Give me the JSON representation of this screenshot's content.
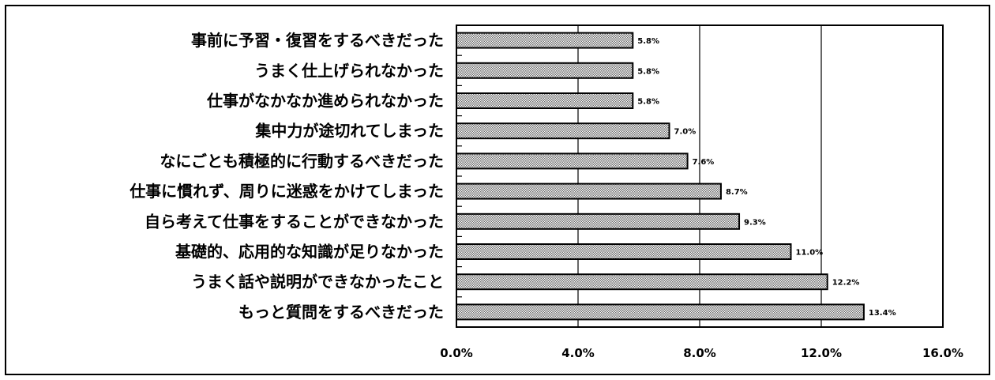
{
  "chart_data": {
    "type": "bar",
    "orientation": "horizontal",
    "categories": [
      "事前に予習・復習をするべきだった",
      "うまく仕上げられなかった",
      "仕事がなかなか進められなかった",
      "集中力が途切れてしまった",
      "なにごとも積極的に行動するべきだった",
      "仕事に慣れず、周りに迷惑をかけてしまった",
      "自ら考えて仕事をすることができなかった",
      "基礎的、応用的な知識が足りなかった",
      "うまく話や説明ができなかったこと",
      "もっと質問をするべきだった"
    ],
    "values": [
      5.8,
      5.8,
      5.8,
      7.0,
      7.6,
      8.7,
      9.3,
      11.0,
      12.2,
      13.4
    ],
    "data_labels": [
      "5.8%",
      "5.8%",
      "5.8%",
      "7.0%",
      "7.6%",
      "8.7%",
      "9.3%",
      "11.0%",
      "12.2%",
      "13.4%"
    ],
    "xlim": [
      0,
      16
    ],
    "x_ticks": [
      0,
      4,
      8,
      12,
      16
    ],
    "x_tick_labels": [
      "0.0%",
      "4.0%",
      "8.0%",
      "12.0%",
      "16.0%"
    ],
    "grid": "vertical",
    "bar_pattern": "crosshatch",
    "colors": {
      "bar_fill": "#b8b8b8",
      "bar_border": "#000000",
      "grid": "#000000"
    }
  }
}
